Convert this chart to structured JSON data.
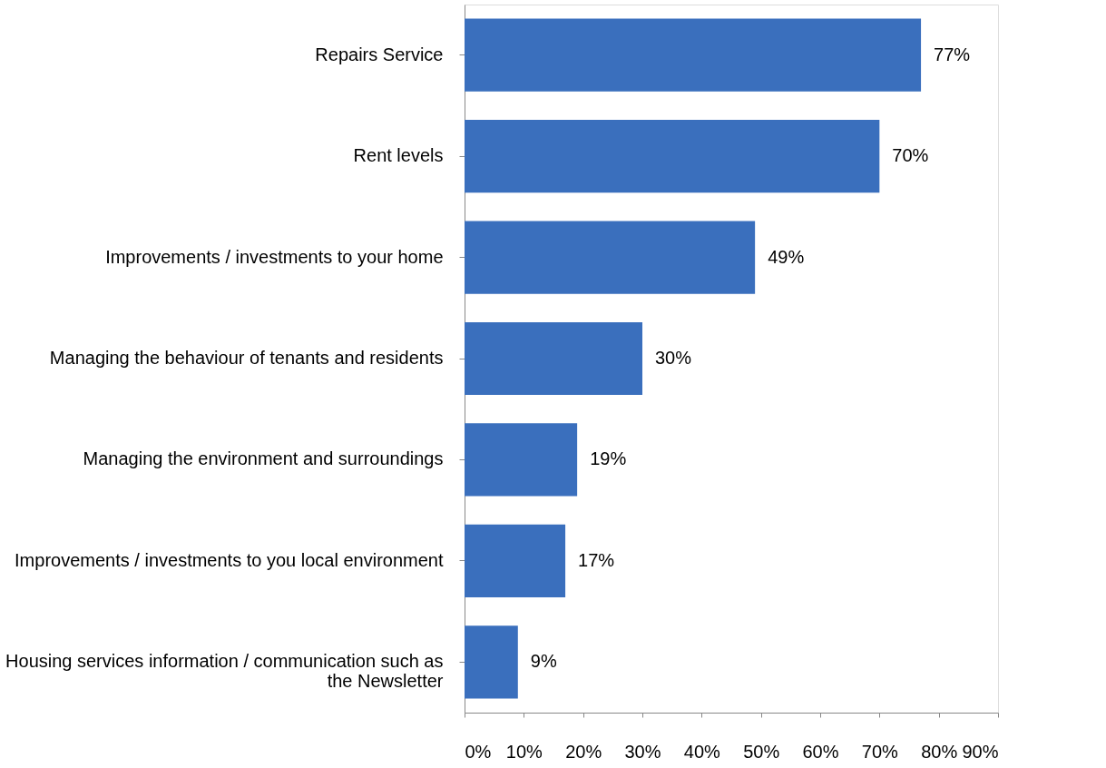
{
  "chart_data": {
    "type": "bar",
    "orientation": "horizontal",
    "categories": [
      "Repairs Service",
      "Rent levels",
      "Improvements / investments to your home",
      "Managing the behaviour of tenants and residents",
      "Managing the environment and surroundings",
      "Improvements / investments to you local environment",
      "Housing services information / communication such as the Newsletter"
    ],
    "values": [
      77,
      70,
      49,
      30,
      19,
      17,
      9
    ],
    "value_labels": [
      "77%",
      "70%",
      "49%",
      "30%",
      "19%",
      "17%",
      "9%"
    ],
    "color": "#3a6fbd",
    "xlim": [
      0,
      90
    ],
    "xticks": [
      {
        "value": 0,
        "label": "0%"
      },
      {
        "value": 10,
        "label": "10%"
      },
      {
        "value": 20,
        "label": "20%"
      },
      {
        "value": 30,
        "label": "30%"
      },
      {
        "value": 40,
        "label": "40%"
      },
      {
        "value": 50,
        "label": "50%"
      },
      {
        "value": 60,
        "label": "60%"
      },
      {
        "value": 70,
        "label": "70%"
      },
      {
        "value": 80,
        "label": "80%"
      },
      {
        "value": 90,
        "label": "90%"
      }
    ],
    "grid": false
  }
}
